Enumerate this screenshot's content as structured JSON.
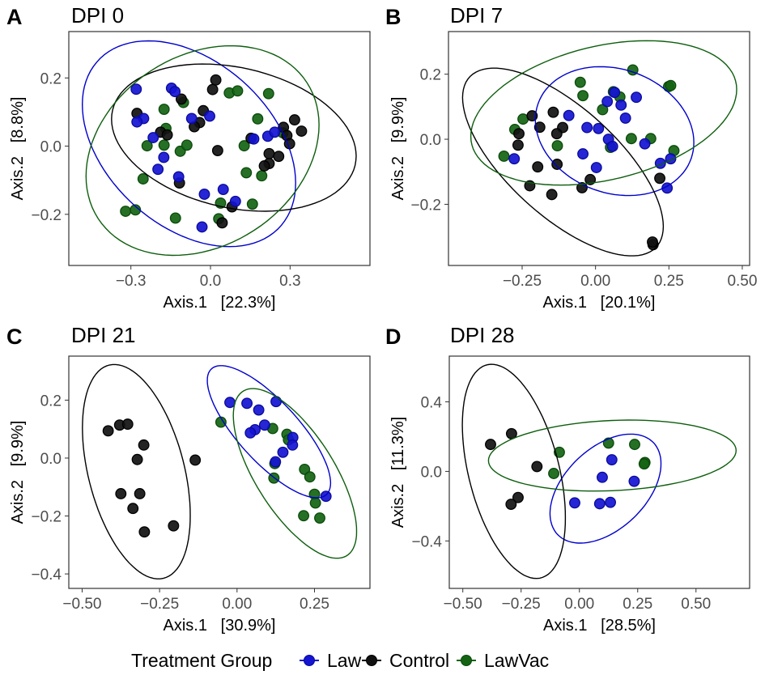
{
  "legend": {
    "title": "Treatment Group",
    "entries": [
      {
        "label": "Law",
        "color": "#1414d2"
      },
      {
        "label": "Control",
        "color": "#000000"
      },
      {
        "label": "LawVac",
        "color": "#146414"
      }
    ],
    "placement": "bottom"
  },
  "chart_data": [
    {
      "type": "scatter",
      "panel": "A",
      "title": "DPI 0",
      "xlabel": "Axis.1   [22.3%]",
      "ylabel": "Axis.2   [8.8%]",
      "xlim": [
        -0.534,
        0.601
      ],
      "ylim": [
        -0.35,
        0.336
      ],
      "xticks": [
        {
          "v": -0.3,
          "label": "−0.3"
        },
        {
          "v": 0,
          "label": "0.0"
        },
        {
          "v": 0.3,
          "label": "0.3"
        }
      ],
      "yticks": [
        {
          "v": -0.2,
          "label": "−0.2"
        },
        {
          "v": 0,
          "label": "0.0"
        },
        {
          "v": 0.2,
          "label": "0.2"
        }
      ],
      "series": [
        {
          "name": "Law",
          "points": [
            [
              -0.28,
              0.167
            ],
            [
              -0.147,
              0.17
            ],
            [
              -0.134,
              0.16
            ],
            [
              -0.252,
              0.081
            ],
            [
              -0.277,
              0.071
            ],
            [
              -0.071,
              0.081
            ],
            [
              -0.003,
              0.088
            ],
            [
              -0.216,
              0.025
            ],
            [
              -0.176,
              -0.033
            ],
            [
              -0.198,
              -0.068
            ],
            [
              -0.12,
              -0.09
            ],
            [
              -0.023,
              -0.141
            ],
            [
              0.048,
              -0.127
            ],
            [
              0.094,
              -0.162
            ],
            [
              -0.032,
              -0.237
            ],
            [
              0.163,
              0.021
            ],
            [
              0.216,
              0.029
            ],
            [
              0.242,
              0.041
            ]
          ],
          "ellipse": {
            "center": [
              -0.081,
              0.007
            ],
            "u": [
              0.402,
              -0.115
            ],
            "v": [
              0,
              -0.279
            ]
          }
        },
        {
          "name": "Control",
          "points": [
            [
              0.02,
              0.194
            ],
            [
              0.008,
              0.166
            ],
            [
              -0.11,
              0.138
            ],
            [
              -0.277,
              0.096
            ],
            [
              -0.027,
              0.104
            ],
            [
              -0.041,
              0.069
            ],
            [
              -0.061,
              0.057
            ],
            [
              -0.188,
              0.041
            ],
            [
              -0.163,
              0.033
            ],
            [
              0.027,
              -0.013
            ],
            [
              -0.117,
              -0.108
            ],
            [
              0.081,
              -0.178
            ],
            [
              0.044,
              -0.225
            ],
            [
              0.153,
              0.023
            ],
            [
              0.275,
              0.055
            ],
            [
              0.288,
              0.031
            ],
            [
              0.298,
              0.007
            ],
            [
              0.317,
              0.077
            ],
            [
              0.343,
              0.044
            ],
            [
              0.221,
              -0.022
            ],
            [
              0.257,
              -0.03
            ],
            [
              0.221,
              -0.051
            ],
            [
              0.203,
              -0.058
            ]
          ],
          "ellipse": {
            "center": [
              0.088,
              0.025
            ],
            "u": [
              0.461,
              -0.054
            ],
            "v": [
              0,
              0.209
            ]
          }
        },
        {
          "name": "LawVac",
          "points": [
            [
              0.071,
              0.156
            ],
            [
              0.102,
              0.162
            ],
            [
              0.219,
              0.154
            ],
            [
              -0.102,
              0.128
            ],
            [
              -0.175,
              0.108
            ],
            [
              0.178,
              0.08
            ],
            [
              -0.168,
              0.052
            ],
            [
              -0.239,
              0.001
            ],
            [
              -0.175,
              0.003
            ],
            [
              -0.114,
              -0.015
            ],
            [
              -0.089,
              0.003
            ],
            [
              0.127,
              0.001
            ],
            [
              0.135,
              -0.078
            ],
            [
              0.193,
              -0.087
            ],
            [
              -0.254,
              -0.096
            ],
            [
              0.038,
              -0.167
            ],
            [
              0.158,
              -0.17
            ],
            [
              -0.32,
              -0.191
            ],
            [
              -0.283,
              -0.187
            ],
            [
              -0.132,
              -0.211
            ],
            [
              0.031,
              -0.213
            ],
            [
              0.273,
              0.039
            ]
          ],
          "ellipse": {
            "center": [
              -0.03,
              -0.013
            ],
            "u": [
              0.439,
              0.075
            ],
            "v": [
              0,
              0.298
            ]
          }
        }
      ]
    },
    {
      "type": "scatter",
      "panel": "B",
      "title": "DPI 7",
      "xlabel": "Axis.1   [20.1%]",
      "ylabel": "Axis.2   [9.9%]",
      "xlim": [
        -0.501,
        0.525
      ],
      "ylim": [
        -0.388,
        0.331
      ],
      "xticks": [
        {
          "v": -0.25,
          "label": "−0.25"
        },
        {
          "v": 0,
          "label": "0.00"
        },
        {
          "v": 0.25,
          "label": "0.25"
        },
        {
          "v": 0.5,
          "label": "0.50"
        }
      ],
      "yticks": [
        {
          "v": -0.2,
          "label": "−0.2"
        },
        {
          "v": 0,
          "label": "0.0"
        },
        {
          "v": 0.2,
          "label": "0.2"
        }
      ],
      "series": [
        {
          "name": "Law",
          "points": [
            [
              -0.091,
              0.073
            ],
            [
              -0.029,
              0.036
            ],
            [
              0.01,
              0.033
            ],
            [
              0.04,
              0.116
            ],
            [
              0.065,
              0.144
            ],
            [
              0.087,
              0.105
            ],
            [
              0.139,
              0.129
            ],
            [
              0.102,
              0.065
            ],
            [
              0.044,
              0
            ],
            [
              0.058,
              -0.022
            ],
            [
              -0.043,
              -0.045
            ],
            [
              0.003,
              -0.087
            ],
            [
              0.168,
              -0.014
            ],
            [
              0.221,
              -0.074
            ],
            [
              0.256,
              -0.06
            ],
            [
              0.244,
              -0.15
            ],
            [
              -0.277,
              -0.06
            ]
          ],
          "ellipse": {
            "center": [
              0.065,
              0.025
            ],
            "u": [
              0.27,
              -0.035
            ],
            "v": [
              0,
              0.195
            ]
          }
        },
        {
          "name": "Control",
          "points": [
            [
              -0.216,
              0.072
            ],
            [
              -0.144,
              0.083
            ],
            [
              -0.19,
              0.037
            ],
            [
              -0.112,
              0.036
            ],
            [
              -0.132,
              0.017
            ],
            [
              -0.261,
              0.017
            ],
            [
              -0.264,
              -0.018
            ],
            [
              -0.197,
              -0.085
            ],
            [
              -0.131,
              -0.077
            ],
            [
              -0.224,
              -0.143
            ],
            [
              -0.149,
              -0.17
            ],
            [
              -0.046,
              -0.149
            ],
            [
              -0.018,
              -0.124
            ],
            [
              0.219,
              -0.12
            ],
            [
              0.196,
              -0.324
            ],
            [
              0.194,
              -0.316
            ]
          ],
          "ellipse": {
            "center": [
              -0.111,
              -0.07
            ],
            "u": [
              0.342,
              -0.198
            ],
            "v": [
              0,
              0.21
            ]
          }
        },
        {
          "name": "LawVac",
          "points": [
            [
              0.127,
              0.213
            ],
            [
              -0.052,
              0.175
            ],
            [
              -0.043,
              0.134
            ],
            [
              0.249,
              0.162
            ],
            [
              0.256,
              0.165
            ],
            [
              0.061,
              0.146
            ],
            [
              0.083,
              0.13
            ],
            [
              0.024,
              0.091
            ],
            [
              -0.247,
              0.062
            ],
            [
              -0.275,
              0.03
            ],
            [
              -0.13,
              -0.02
            ],
            [
              0.051,
              -0.025
            ],
            [
              0.122,
              0.002
            ],
            [
              0.188,
              0.002
            ],
            [
              0.267,
              -0.035
            ],
            [
              -0.312,
              -0.052
            ]
          ],
          "ellipse": {
            "center": [
              0.028,
              0.081
            ],
            "u": [
              0.453,
              0.072
            ],
            "v": [
              0,
              0.21
            ]
          }
        }
      ]
    },
    {
      "type": "scatter",
      "panel": "C",
      "title": "DPI 21",
      "xlabel": "Axis.1   [30.9%]",
      "ylabel": "Axis.2   [9.9%]",
      "xlim": [
        -0.543,
        0.429
      ],
      "ylim": [
        -0.45,
        0.352
      ],
      "xticks": [
        {
          "v": -0.5,
          "label": "−0.50"
        },
        {
          "v": -0.25,
          "label": "−0.25"
        },
        {
          "v": 0,
          "label": "0.00"
        },
        {
          "v": 0.25,
          "label": "0.25"
        }
      ],
      "yticks": [
        {
          "v": -0.4,
          "label": "−0.4"
        },
        {
          "v": -0.2,
          "label": "−0.2"
        },
        {
          "v": 0,
          "label": "0.0"
        },
        {
          "v": 0.2,
          "label": "0.2"
        }
      ],
      "series": [
        {
          "name": "Law",
          "points": [
            [
              -0.023,
              0.192
            ],
            [
              0.032,
              0.189
            ],
            [
              0.07,
              0.166
            ],
            [
              0.126,
              0.195
            ],
            [
              0.089,
              0.114
            ],
            [
              0.058,
              0.098
            ],
            [
              0.043,
              0.087
            ],
            [
              0.18,
              0.071
            ],
            [
              0.179,
              0.045
            ],
            [
              0.148,
              0.02
            ],
            [
              0.124,
              -0.013
            ],
            [
              0.287,
              -0.132
            ]
          ],
          "ellipse": {
            "center": [
              0.103,
              0.091
            ],
            "u": [
              0.199,
              -0.177
            ],
            "v": [
              0,
              0.144
            ]
          }
        },
        {
          "name": "Control",
          "points": [
            [
              -0.416,
              0.094
            ],
            [
              -0.379,
              0.114
            ],
            [
              -0.353,
              0.117
            ],
            [
              -0.301,
              0.045
            ],
            [
              -0.322,
              -0.005
            ],
            [
              -0.135,
              -0.007
            ],
            [
              -0.375,
              -0.123
            ],
            [
              -0.314,
              -0.123
            ],
            [
              -0.336,
              -0.174
            ],
            [
              -0.299,
              -0.255
            ],
            [
              -0.205,
              -0.234
            ]
          ],
          "ellipse": {
            "center": [
              -0.325,
              -0.047
            ],
            "u": [
              0.174,
              -0.151
            ],
            "v": [
              0,
              0.338
            ]
          }
        },
        {
          "name": "LawVac",
          "points": [
            [
              -0.052,
              0.124
            ],
            [
              0.115,
              0.102
            ],
            [
              0.161,
              0.082
            ],
            [
              0.166,
              0.063
            ],
            [
              0.122,
              -0.019
            ],
            [
              0.119,
              -0.069
            ],
            [
              0.218,
              -0.039
            ],
            [
              0.235,
              -0.065
            ],
            [
              0.25,
              -0.125
            ],
            [
              0.253,
              -0.155
            ],
            [
              0.215,
              -0.199
            ],
            [
              0.267,
              -0.207
            ]
          ],
          "ellipse": {
            "center": [
              0.187,
              -0.053
            ],
            "u": [
              0.199,
              -0.2
            ],
            "v": [
              0,
              0.214
            ]
          }
        }
      ]
    },
    {
      "type": "scatter",
      "panel": "D",
      "title": "DPI 28",
      "xlabel": "Axis.1   [28.5%]",
      "ylabel": "Axis.2   [11.3%]",
      "xlim": [
        -0.558,
        0.73
      ],
      "ylim": [
        -0.673,
        0.663
      ],
      "xticks": [
        {
          "v": -0.5,
          "label": "−0.50"
        },
        {
          "v": -0.25,
          "label": "−0.25"
        },
        {
          "v": 0,
          "label": "0.00"
        },
        {
          "v": 0.25,
          "label": "0.25"
        },
        {
          "v": 0.5,
          "label": "0.50"
        }
      ],
      "yticks": [
        {
          "v": -0.4,
          "label": "−0.4"
        },
        {
          "v": 0,
          "label": "0.0"
        },
        {
          "v": 0.4,
          "label": "0.4"
        }
      ],
      "series": [
        {
          "name": "Law",
          "points": [
            [
              0.139,
              0.067
            ],
            [
              0.098,
              -0.034
            ],
            [
              0.235,
              -0.057
            ],
            [
              -0.02,
              -0.181
            ],
            [
              0.087,
              -0.186
            ],
            [
              0.133,
              -0.178
            ]
          ],
          "ellipse": {
            "center": [
              0.112,
              -0.099
            ],
            "u": [
              0.238,
              0.143
            ],
            "v": [
              0,
              0.279
            ]
          }
        },
        {
          "name": "Control",
          "points": [
            [
              -0.381,
              0.155
            ],
            [
              -0.291,
              0.217
            ],
            [
              -0.182,
              0.028
            ],
            [
              -0.263,
              -0.15
            ],
            [
              -0.293,
              -0.189
            ]
          ],
          "ellipse": {
            "center": [
              -0.281,
              0
            ],
            "u": [
              0.221,
              -0.267
            ],
            "v": [
              0,
              0.555
            ]
          }
        },
        {
          "name": "LawVac",
          "points": [
            [
              -0.086,
              0.11
            ],
            [
              -0.11,
              -0.012
            ],
            [
              0.125,
              0.163
            ],
            [
              0.237,
              0.155
            ],
            [
              0.281,
              0.051
            ],
            [
              0.278,
              0.043
            ]
          ],
          "ellipse": {
            "center": [
              0.141,
              0.091
            ],
            "u": [
              0.531,
              0.029
            ],
            "v": [
              0,
              0.202
            ]
          }
        }
      ]
    }
  ]
}
